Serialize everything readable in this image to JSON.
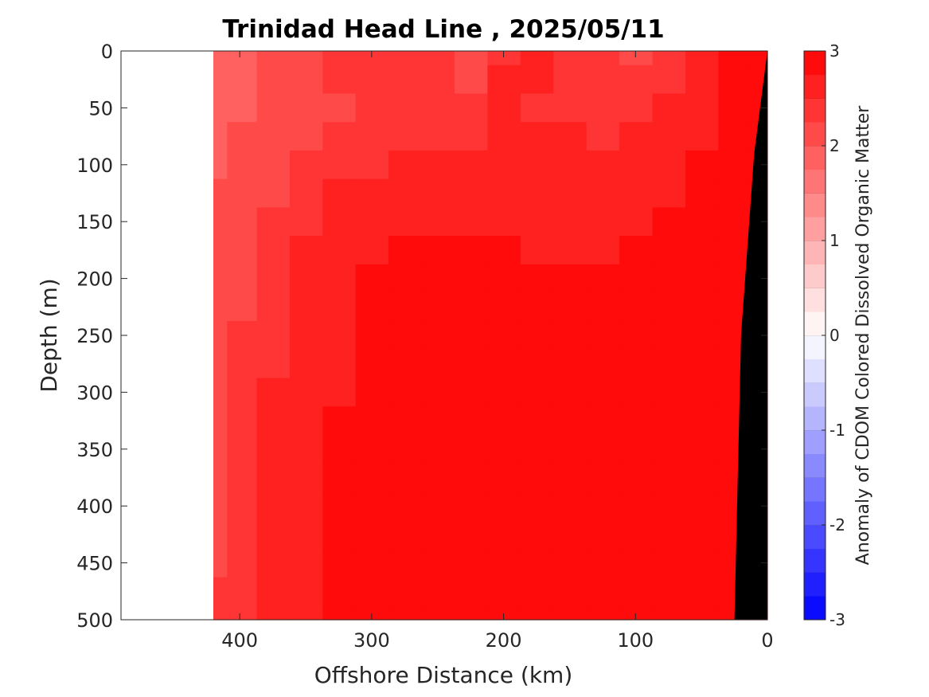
{
  "chart_data": {
    "type": "heatmap",
    "title": "Trinidad Head Line , 2025/05/11",
    "xlabel": "Offshore Distance (km)",
    "ylabel": "Depth (m)",
    "colorbar_label": "Anomaly of CDOM Colored Dissolved Organic Matter",
    "xlim": [
      490,
      0
    ],
    "ylim": [
      500,
      0
    ],
    "x_reversed": true,
    "y_reversed": true,
    "x_ticks": [
      400,
      300,
      200,
      100,
      0
    ],
    "x_tick_labels": [
      "400",
      "300",
      "200",
      "100",
      "0"
    ],
    "y_ticks": [
      0,
      50,
      100,
      150,
      200,
      250,
      300,
      350,
      400,
      450,
      500
    ],
    "y_tick_labels": [
      "0",
      "50",
      "100",
      "150",
      "200",
      "250",
      "300",
      "350",
      "400",
      "450",
      "500"
    ],
    "colorbar": {
      "range": [
        -3,
        3
      ],
      "step": 0.25,
      "tick_values": [
        3,
        2,
        1,
        0,
        -1,
        -2,
        -3
      ],
      "tick_labels": [
        "3",
        "2",
        "1",
        "0",
        "-1",
        "-2",
        "-3"
      ],
      "low_color": "#0000ff",
      "mid_color": "#ffffff",
      "high_color": "#ff0000"
    },
    "data_extent_km": [
      0,
      420
    ],
    "bathymetry": {
      "color": "#000000",
      "distance_km": [
        0,
        10,
        20,
        25
      ],
      "depth_m": [
        0,
        90,
        250,
        500
      ]
    },
    "depth_m": [
      0,
      25,
      50,
      75,
      100,
      125,
      150,
      175,
      200,
      225,
      250,
      275,
      300,
      325,
      350,
      375,
      400,
      425,
      450,
      475,
      500
    ],
    "distance_km": [
      0,
      25,
      50,
      75,
      100,
      125,
      150,
      175,
      200,
      225,
      250,
      275,
      300,
      325,
      350,
      375,
      400,
      420
    ],
    "anomaly_rows_nearshore_to_offshore": [
      [
        3.0,
        2.8,
        2.5,
        2.3,
        2.2,
        2.3,
        2.3,
        2.5,
        2.3,
        2.2,
        2.4,
        2.3,
        2.3,
        2.3,
        2.2,
        2.1,
        1.9,
        1.8
      ],
      [
        3.0,
        2.8,
        2.6,
        2.4,
        2.3,
        2.3,
        2.4,
        2.5,
        2.5,
        2.2,
        2.4,
        2.4,
        2.3,
        2.3,
        2.2,
        2.1,
        1.9,
        1.8
      ],
      [
        3.0,
        2.8,
        2.6,
        2.6,
        2.3,
        2.4,
        2.4,
        2.4,
        2.5,
        2.3,
        2.3,
        2.3,
        2.3,
        2.2,
        2.1,
        2.0,
        1.9,
        1.8
      ],
      [
        3.0,
        2.9,
        2.7,
        2.6,
        2.5,
        2.4,
        2.5,
        2.5,
        2.5,
        2.4,
        2.4,
        2.4,
        2.3,
        2.3,
        2.2,
        2.1,
        2.0,
        1.9
      ],
      [
        3.0,
        2.9,
        2.8,
        2.6,
        2.6,
        2.5,
        2.5,
        2.6,
        2.6,
        2.5,
        2.5,
        2.5,
        2.4,
        2.4,
        2.3,
        2.2,
        2.0,
        1.9
      ],
      [
        3.0,
        2.9,
        2.8,
        2.7,
        2.6,
        2.6,
        2.6,
        2.6,
        2.6,
        2.6,
        2.6,
        2.6,
        2.5,
        2.5,
        2.4,
        2.2,
        2.1,
        2.0
      ],
      [
        3.0,
        2.9,
        2.8,
        2.8,
        2.7,
        2.7,
        2.6,
        2.7,
        2.7,
        2.7,
        2.7,
        2.7,
        2.6,
        2.5,
        2.4,
        2.3,
        2.1,
        2.0
      ],
      [
        3.0,
        3.0,
        2.9,
        2.8,
        2.8,
        2.7,
        2.7,
        2.7,
        2.8,
        2.8,
        2.8,
        2.8,
        2.7,
        2.6,
        2.5,
        2.3,
        2.2,
        2.1
      ],
      [
        3.0,
        3.0,
        2.9,
        2.8,
        2.8,
        2.8,
        2.8,
        2.8,
        2.8,
        2.9,
        2.9,
        2.9,
        2.8,
        2.6,
        2.5,
        2.4,
        2.2,
        2.1
      ],
      [
        3.0,
        3.0,
        2.9,
        2.9,
        2.8,
        2.8,
        2.9,
        2.9,
        2.9,
        2.9,
        2.9,
        2.9,
        2.8,
        2.7,
        2.5,
        2.4,
        2.2,
        2.1
      ],
      [
        3.0,
        3.0,
        2.9,
        2.9,
        2.9,
        2.9,
        2.9,
        2.9,
        2.9,
        2.9,
        2.9,
        2.9,
        2.8,
        2.7,
        2.6,
        2.4,
        2.3,
        2.1
      ],
      [
        3.0,
        3.0,
        2.9,
        2.9,
        2.9,
        2.9,
        2.9,
        2.9,
        2.9,
        2.9,
        2.9,
        2.9,
        2.8,
        2.7,
        2.6,
        2.4,
        2.3,
        2.2
      ],
      [
        3.0,
        3.0,
        3.0,
        2.9,
        2.9,
        2.9,
        2.9,
        2.9,
        2.9,
        2.9,
        2.9,
        2.9,
        2.8,
        2.7,
        2.6,
        2.5,
        2.3,
        2.2
      ],
      [
        3.0,
        3.0,
        3.0,
        2.9,
        2.9,
        2.9,
        2.9,
        2.9,
        3.0,
        2.9,
        2.9,
        2.9,
        2.9,
        2.8,
        2.6,
        2.5,
        2.3,
        2.2
      ],
      [
        3.0,
        3.0,
        3.0,
        3.0,
        2.9,
        2.9,
        3.0,
        3.0,
        3.0,
        2.9,
        2.9,
        2.9,
        2.9,
        2.8,
        2.6,
        2.5,
        2.3,
        2.2
      ],
      [
        3.0,
        3.0,
        3.0,
        3.0,
        3.0,
        3.0,
        3.0,
        3.0,
        3.0,
        3.0,
        2.9,
        2.9,
        2.9,
        2.8,
        2.7,
        2.5,
        2.3,
        2.2
      ],
      [
        3.0,
        3.0,
        3.0,
        3.0,
        3.0,
        3.0,
        3.0,
        3.0,
        3.0,
        3.0,
        2.9,
        2.9,
        2.9,
        2.8,
        2.7,
        2.5,
        2.4,
        2.2
      ],
      [
        3.0,
        3.0,
        3.0,
        3.0,
        3.0,
        3.0,
        3.0,
        3.0,
        3.0,
        3.0,
        3.0,
        2.9,
        2.9,
        2.8,
        2.7,
        2.5,
        2.4,
        2.2
      ],
      [
        3.0,
        3.0,
        3.0,
        3.0,
        3.0,
        3.0,
        3.0,
        3.0,
        3.0,
        3.0,
        3.0,
        2.9,
        2.9,
        2.8,
        2.7,
        2.6,
        2.4,
        2.2
      ],
      [
        3.0,
        3.0,
        3.0,
        3.0,
        3.0,
        3.0,
        3.0,
        3.0,
        3.0,
        3.0,
        3.0,
        3.0,
        2.9,
        2.8,
        2.7,
        2.6,
        2.4,
        2.3
      ],
      [
        3.0,
        3.0,
        3.0,
        3.0,
        3.0,
        3.0,
        3.0,
        3.0,
        3.0,
        3.0,
        3.0,
        3.0,
        2.9,
        2.9,
        2.7,
        2.6,
        2.4,
        2.3
      ]
    ]
  }
}
